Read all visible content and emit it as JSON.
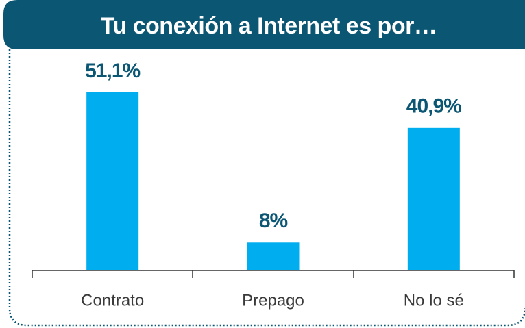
{
  "chart_data": {
    "type": "bar",
    "title": "Tu conexión a Internet es por…",
    "categories": [
      "Contrato",
      "Prepago",
      "No lo sé"
    ],
    "values": [
      51.1,
      8,
      40.9
    ],
    "value_labels": [
      "51,1%",
      "8%",
      "40,9%"
    ],
    "color": "#00aeef"
  }
}
